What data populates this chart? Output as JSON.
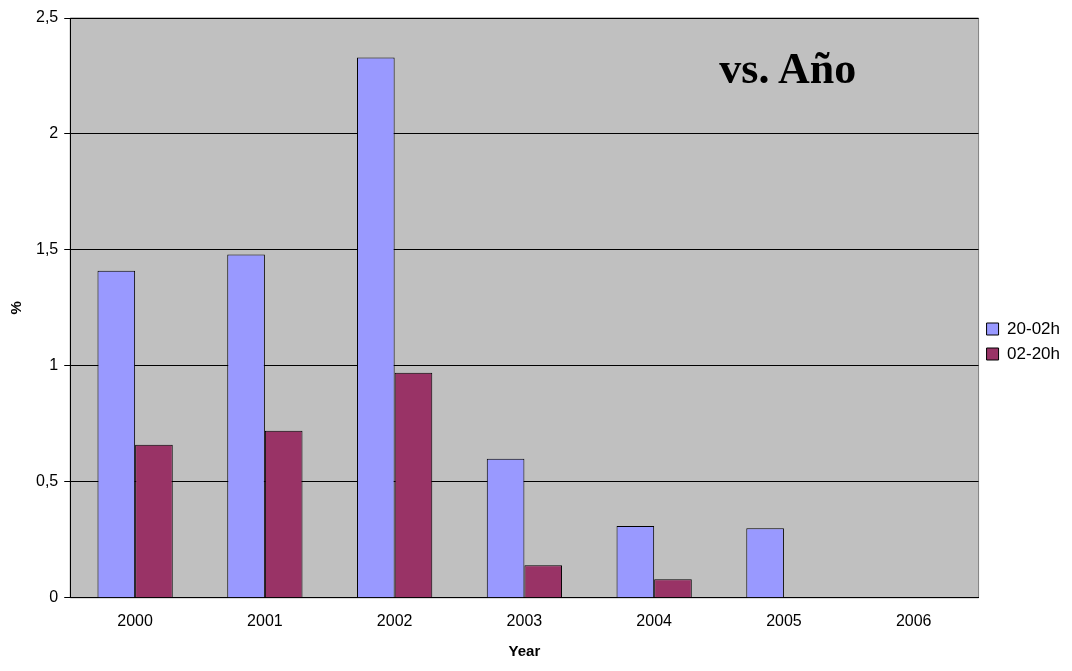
{
  "chart_data": {
    "type": "bar",
    "title": "vs. Año",
    "xlabel": "Year",
    "ylabel": "%",
    "categories": [
      "2000",
      "2001",
      "2002",
      "2003",
      "2004",
      "2005",
      "2006"
    ],
    "series": [
      {
        "name": "20-02h",
        "color": "#9999ff",
        "values": [
          1.41,
          1.48,
          2.33,
          0.6,
          0.31,
          0.3,
          null
        ]
      },
      {
        "name": "02-20h",
        "color": "#993366",
        "values": [
          0.66,
          0.72,
          0.97,
          0.14,
          0.08,
          null,
          null
        ]
      }
    ],
    "ylim": [
      0,
      2.5
    ],
    "yticks": [
      0,
      {
        "value": 0.5,
        "label": "0,5"
      },
      1,
      {
        "value": 1.5,
        "label": "1,5"
      },
      2,
      {
        "value": 2.5,
        "label": "2,5"
      }
    ],
    "grid": "y",
    "legend": "right"
  }
}
